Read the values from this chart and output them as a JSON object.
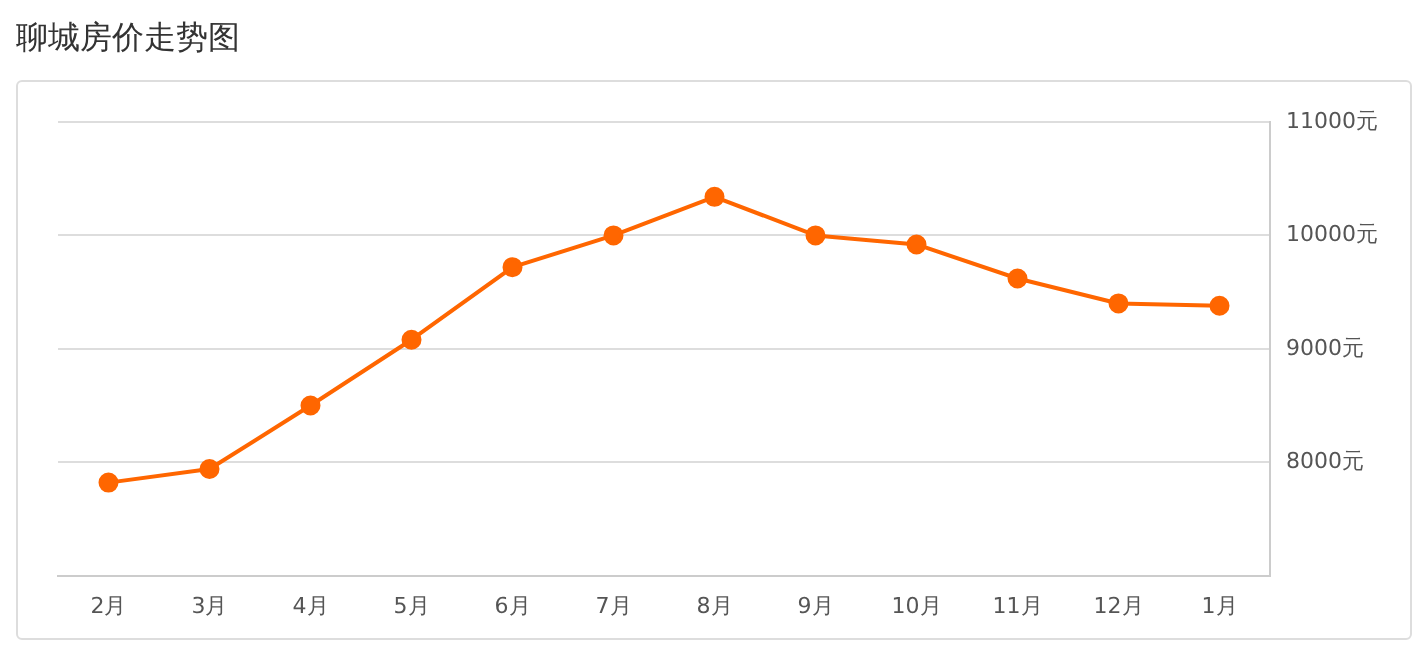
{
  "chart_data": {
    "type": "line",
    "title": "聊城房价走势图",
    "categories": [
      "2月",
      "3月",
      "4月",
      "5月",
      "6月",
      "7月",
      "8月",
      "9月",
      "10月",
      "11月",
      "12月",
      "1月"
    ],
    "series": [
      {
        "color": "#ff6600",
        "values": [
          7820,
          7940,
          8500,
          9080,
          9720,
          10000,
          10340,
          10000,
          9920,
          9620,
          9400,
          9380
        ]
      }
    ],
    "ylim": [
      7000,
      11000
    ],
    "yticks": [
      {
        "value": 8000,
        "label": "8000元"
      },
      {
        "value": 9000,
        "label": "9000元"
      },
      {
        "value": 10000,
        "label": "10000元"
      },
      {
        "value": 11000,
        "label": "11000元"
      }
    ],
    "grid": "y",
    "legend": false,
    "marker": "circle",
    "line_style": "solid"
  }
}
